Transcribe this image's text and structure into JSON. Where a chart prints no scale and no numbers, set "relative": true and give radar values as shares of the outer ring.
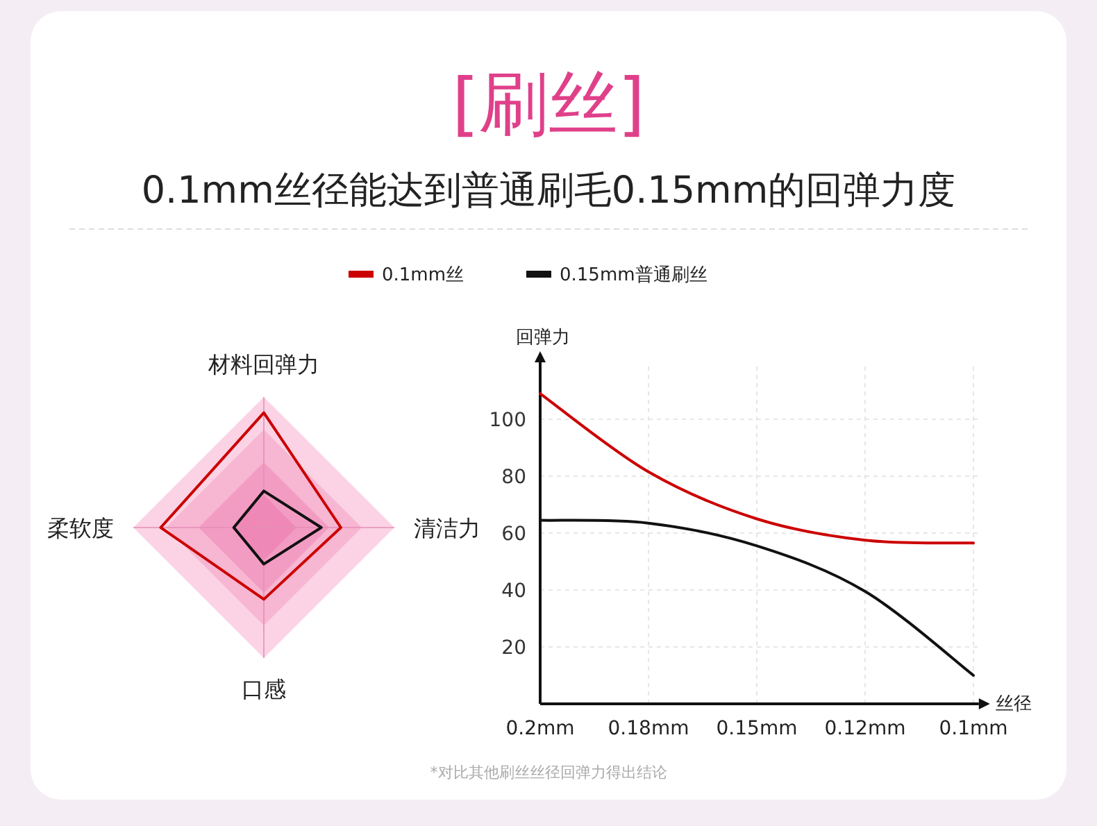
{
  "chart_data": [
    {
      "type": "radar",
      "categories": [
        "材料回弹力",
        "清洁力",
        "口感",
        "柔软度"
      ],
      "relative": true,
      "series": [
        {
          "color": "#cc0000",
          "values": [
            0.88,
            0.59,
            0.55,
            0.79
          ]
        },
        {
          "color": "#111111",
          "values": [
            0.28,
            0.44,
            0.28,
            0.23
          ]
        }
      ]
    },
    {
      "type": "line",
      "title": "[刷丝]",
      "subtitle": "0.1mm丝径能达到普通刷毛0.15mm的回弹力度",
      "annotations": [
        "*对比其他刷丝丝径回弹力得出结论"
      ],
      "xlabel": "丝径",
      "ylabel": "回弹力",
      "categories": [
        "0.2mm",
        "0.18mm",
        "0.15mm",
        "0.12mm",
        "0.1mm"
      ],
      "ylim": [
        0,
        120
      ],
      "yticks": [
        20,
        40,
        60,
        80,
        100
      ],
      "grid": true,
      "legend": "top",
      "series": [
        {
          "name": "0.1mm丝",
          "color": "#cc0000",
          "values": [
            109,
            81.5,
            65,
            57.5,
            56.5
          ]
        },
        {
          "name": "0.15mm普通刷丝",
          "color": "#111111",
          "values": [
            64.5,
            63.5,
            55.5,
            39.5,
            10
          ]
        }
      ]
    }
  ]
}
